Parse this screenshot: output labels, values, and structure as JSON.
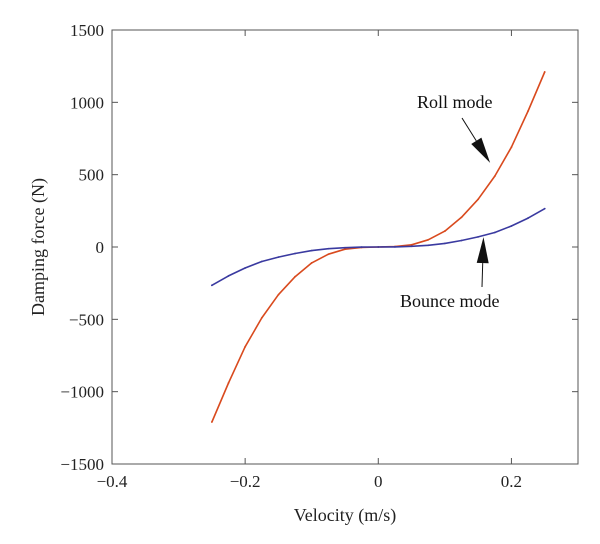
{
  "chart_data": {
    "type": "line",
    "title": "",
    "xlabel": "Velocity (m/s)",
    "ylabel": "Damping force (N)",
    "xlim": [
      -0.4,
      0.3
    ],
    "ylim": [
      -1500,
      1500
    ],
    "xticks": [
      -0.4,
      -0.2,
      0,
      0.2
    ],
    "xtick_labels": [
      "−0.4",
      "−0.2",
      "0",
      "0.2"
    ],
    "yticks": [
      -1500,
      -1000,
      -500,
      0,
      500,
      1000,
      1500
    ],
    "ytick_labels": [
      "−1500",
      "−1000",
      "−500",
      "0",
      "500",
      "1000",
      "1500"
    ],
    "grid": false,
    "series": [
      {
        "name": "Roll mode",
        "color": "#d94a1e",
        "x": [
          -0.25,
          -0.225,
          -0.2,
          -0.175,
          -0.15,
          -0.125,
          -0.1,
          -0.075,
          -0.05,
          -0.025,
          0,
          0.025,
          0.05,
          0.075,
          0.1,
          0.125,
          0.15,
          0.175,
          0.2,
          0.225,
          0.25
        ],
        "y": [
          -1210,
          -940,
          -690,
          -490,
          -330,
          -205,
          -110,
          -50,
          -15,
          -3,
          0,
          3,
          15,
          50,
          110,
          205,
          330,
          490,
          690,
          940,
          1210
        ]
      },
      {
        "name": "Bounce mode",
        "color": "#3a3aa0",
        "x": [
          -0.25,
          -0.225,
          -0.2,
          -0.175,
          -0.15,
          -0.125,
          -0.1,
          -0.075,
          -0.05,
          -0.025,
          0,
          0.025,
          0.05,
          0.075,
          0.1,
          0.125,
          0.15,
          0.175,
          0.2,
          0.225,
          0.25
        ],
        "y": [
          -265,
          -200,
          -145,
          -100,
          -70,
          -45,
          -25,
          -12,
          -5,
          -1,
          0,
          1,
          5,
          12,
          25,
          45,
          70,
          100,
          145,
          200,
          265
        ]
      }
    ],
    "annotations": [
      {
        "text": "Roll mode",
        "target_x": 0.165,
        "target_y": 540
      },
      {
        "text": "Bounce mode",
        "target_x": 0.155,
        "target_y": 110
      }
    ]
  }
}
